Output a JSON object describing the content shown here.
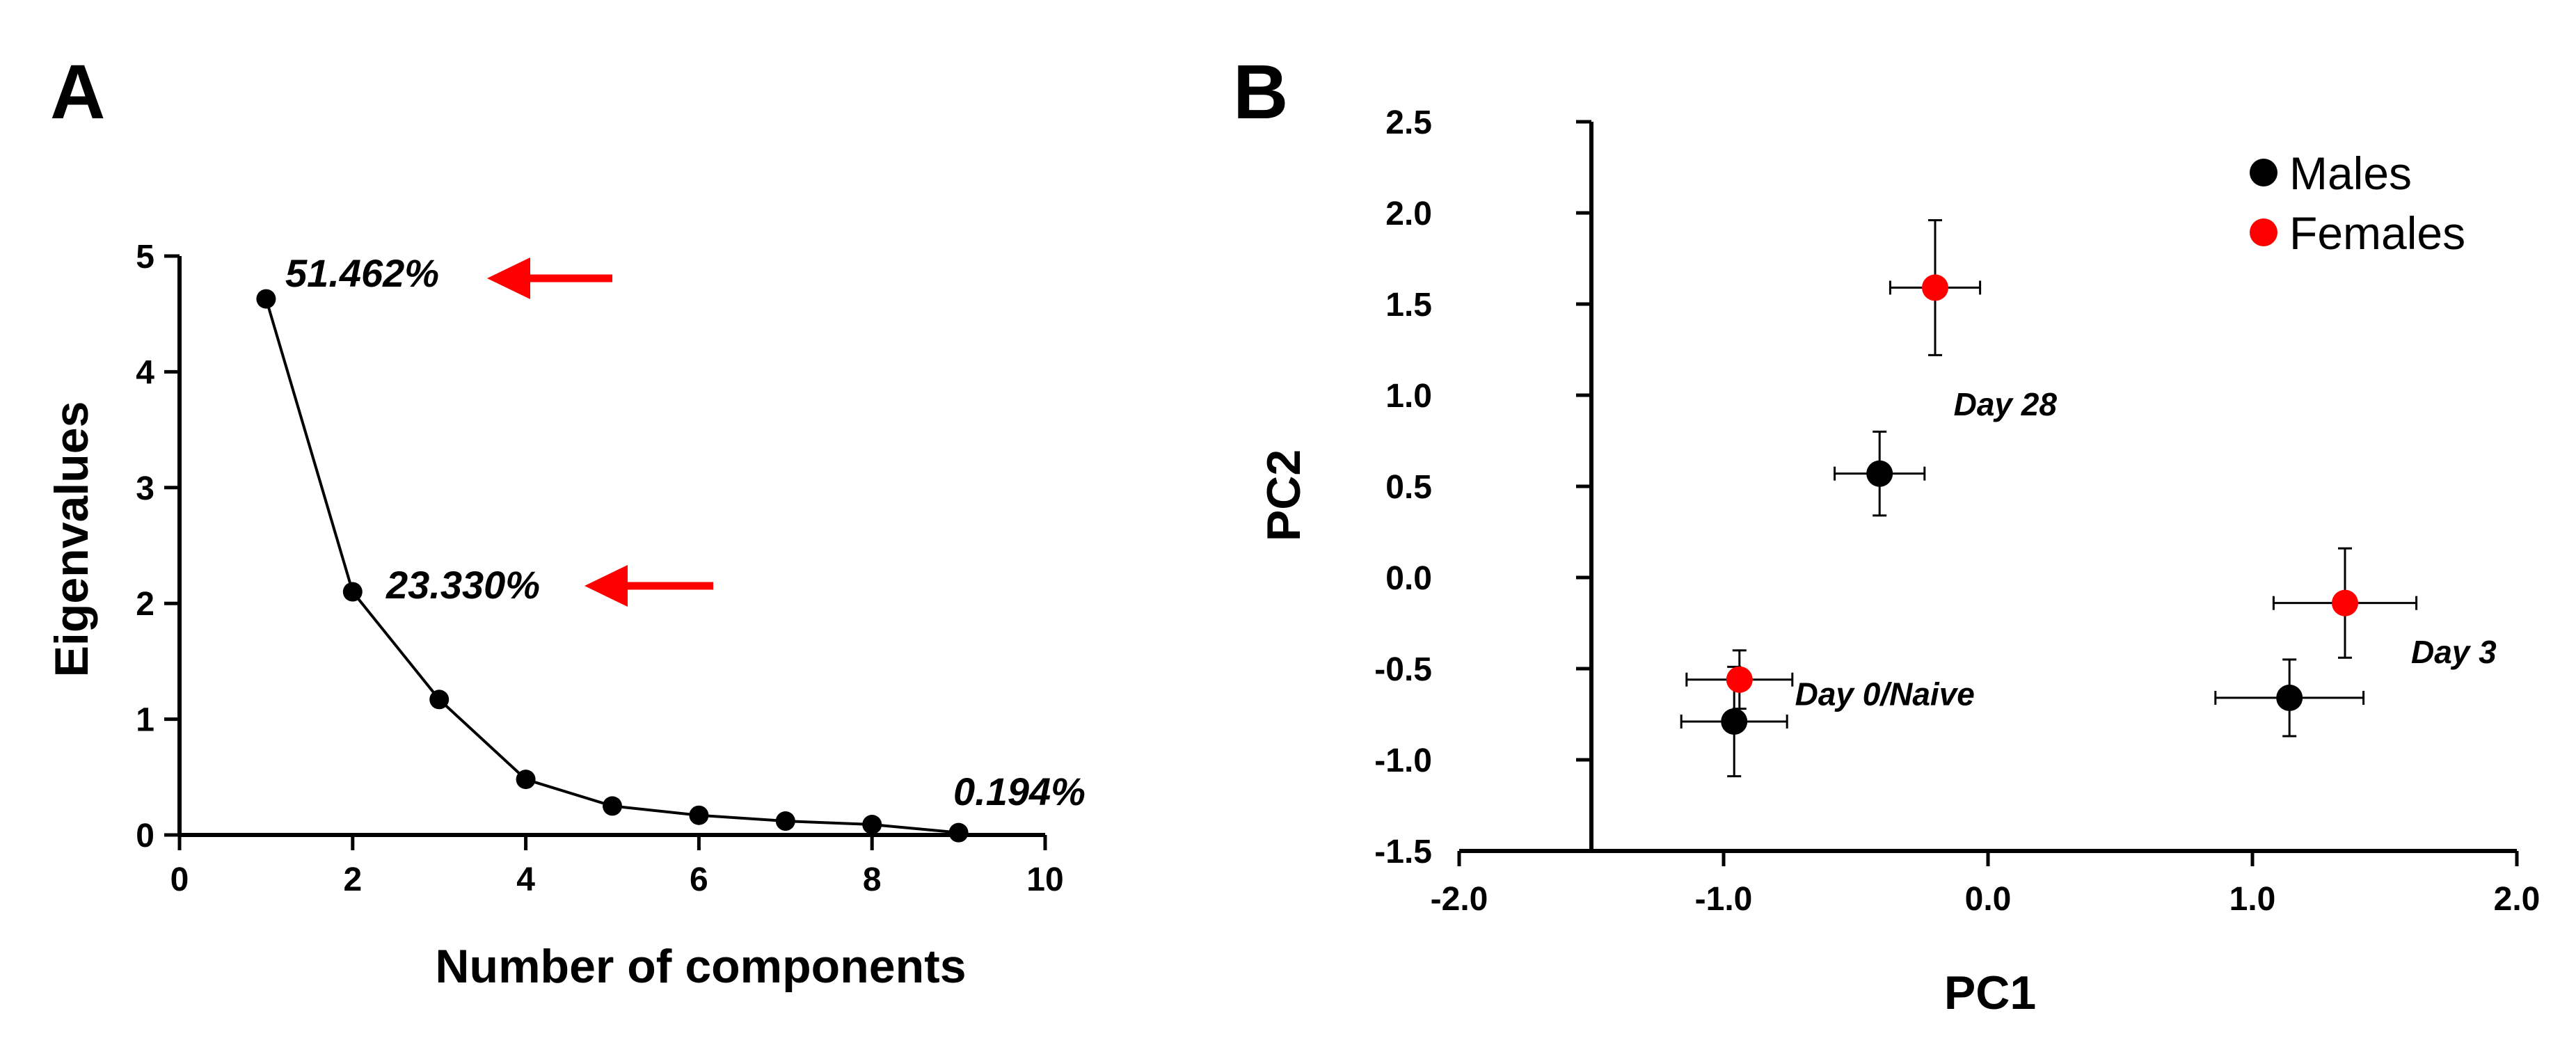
{
  "chart_data": [
    {
      "panel": "A",
      "type": "line",
      "title": "",
      "xlabel": "Number of components",
      "ylabel": "Eigenvalues",
      "xlim": [
        0,
        10
      ],
      "ylim": [
        0,
        5
      ],
      "xticks": [
        "0",
        "2",
        "4",
        "6",
        "8",
        "10"
      ],
      "yticks": [
        "0",
        "1",
        "2",
        "3",
        "4",
        "5"
      ],
      "x": [
        1,
        2,
        3,
        4,
        5,
        6,
        7,
        8,
        9
      ],
      "y": [
        4.63,
        2.1,
        1.17,
        0.48,
        0.25,
        0.17,
        0.12,
        0.09,
        0.02
      ],
      "annotations": [
        {
          "text": "51.462%",
          "near_component": 1,
          "arrow": true,
          "color": "#ff0000"
        },
        {
          "text": "23.330%",
          "near_component": 2,
          "arrow": true,
          "color": "#ff0000"
        },
        {
          "text": "0.194%",
          "near_component": 9,
          "arrow": false,
          "color": "#000000"
        }
      ]
    },
    {
      "panel": "B",
      "type": "scatter",
      "title": "",
      "xlabel": "PC1",
      "ylabel": "PC2",
      "xlim": [
        -2.0,
        2.0
      ],
      "ylim": [
        -1.5,
        2.5
      ],
      "xticks": [
        "-2.0",
        "-1.0",
        "0.0",
        "1.0",
        "2.0"
      ],
      "yticks": [
        "-1.5",
        "-1.0",
        "-0.5",
        "0.0",
        "0.5",
        "1.0",
        "1.5",
        "2.0",
        "2.5"
      ],
      "legend_position": "top-right",
      "series": [
        {
          "name": "Males",
          "color": "#000000",
          "points": [
            {
              "x": -0.96,
              "y": -0.79,
              "xerr": 0.2,
              "yerr": 0.3
            },
            {
              "x": -0.41,
              "y": 0.57,
              "xerr": 0.17,
              "yerr": 0.23
            },
            {
              "x": 1.14,
              "y": -0.66,
              "xerr": 0.28,
              "yerr": 0.21
            }
          ]
        },
        {
          "name": "Females",
          "color": "#ff0000",
          "points": [
            {
              "x": -0.94,
              "y": -0.56,
              "xerr": 0.2,
              "yerr": 0.16
            },
            {
              "x": -0.2,
              "y": 1.59,
              "xerr": 0.17,
              "yerr": 0.37
            },
            {
              "x": 1.35,
              "y": -0.14,
              "xerr": 0.27,
              "yerr": 0.3
            }
          ]
        }
      ],
      "group_labels": [
        {
          "text": "Day 28",
          "x": -0.13,
          "y": 0.89
        },
        {
          "text": "Day 3",
          "x": 1.6,
          "y": -0.47
        },
        {
          "text": "Day 0/Naive",
          "x": -0.73,
          "y": -0.7
        }
      ]
    }
  ],
  "colors": {
    "accent": "#ff0000",
    "ink": "#000000"
  }
}
